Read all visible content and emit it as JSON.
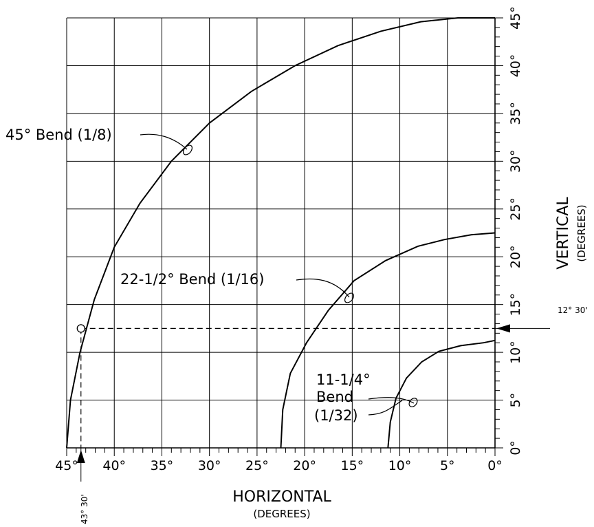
{
  "chart_data": {
    "type": "line",
    "title": "",
    "xlabel": "HORIZONTAL",
    "xlabel_sub": "(DEGREES)",
    "ylabel": "VERTICAL",
    "ylabel_sub": "(DEGREES)",
    "xlim": [
      45,
      0
    ],
    "ylim": [
      0,
      45
    ],
    "grid": true,
    "x_tick_labels": [
      "45°",
      "40°",
      "35°",
      "30°",
      "25°",
      "20°",
      "15°",
      "10°",
      "5°",
      "0°"
    ],
    "y_tick_labels": [
      "0°",
      "5°",
      "10°",
      "15°",
      "20°",
      "25°",
      "30°",
      "35°",
      "40°",
      "45°"
    ],
    "series": [
      {
        "name": "45° Bend (1/8)",
        "x": [
          45,
          44.6,
          43.6,
          42.1,
          40,
          37.3,
          34,
          30,
          25.6,
          21,
          16.5,
          12,
          7.8,
          3.9,
          0
        ],
        "y": [
          0,
          5,
          10,
          15.5,
          21,
          25.6,
          30,
          34,
          37.3,
          40,
          42.1,
          43.6,
          44.6,
          45,
          45
        ]
      },
      {
        "name": "22-1/2° Bend (1/16)",
        "x": [
          22.5,
          22.3,
          21.5,
          19.8,
          17.5,
          14.8,
          11.5,
          8.1,
          5.3,
          2.5,
          0
        ],
        "y": [
          0,
          4,
          7.8,
          11,
          14.4,
          17.5,
          19.6,
          21.1,
          21.8,
          22.3,
          22.5
        ]
      },
      {
        "name": "11-1/4° Bend (1/32)",
        "x": [
          11.25,
          11,
          10.4,
          9.3,
          7.7,
          5.9,
          3.6,
          1.2,
          0
        ],
        "y": [
          0,
          2.7,
          5.2,
          7.3,
          9,
          10.1,
          10.7,
          11,
          11.25
        ]
      }
    ],
    "annotations": {
      "curve_45": "45° Bend (1/8)",
      "curve_22": "22-1/2° Bend (1/16)",
      "curve_11_line1": "11-1/4°",
      "curve_11_line2": "Bend",
      "curve_11_line3": "(1/32)",
      "example_point": {
        "x": 43.5,
        "y": 12.5
      },
      "example_x_label": "43° 30'",
      "example_y_label": "12° 30'"
    }
  }
}
